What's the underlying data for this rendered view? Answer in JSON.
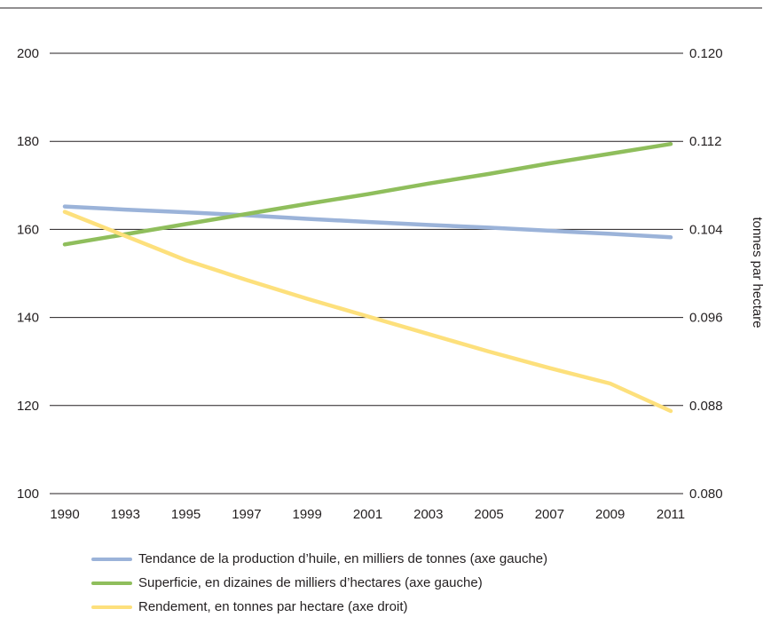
{
  "chart_data": {
    "type": "line",
    "x_labels": [
      "1990",
      "1993",
      "1995",
      "1997",
      "1999",
      "2001",
      "2003",
      "2005",
      "2007",
      "2009",
      "2011"
    ],
    "left_axis": {
      "min": 100,
      "max": 200,
      "ticks": [
        "200",
        "180",
        "160",
        "140",
        "120",
        "100"
      ]
    },
    "right_axis": {
      "min": 0.08,
      "max": 0.12,
      "label": "tonnes par hectare",
      "ticks": [
        "0.120",
        "0.112",
        "0.104",
        "0.096",
        "0.088",
        "0.080"
      ]
    },
    "grid": true,
    "legend_position": "bottom",
    "series": [
      {
        "name": "Tendance de la production d’huile, en milliers de tonnes (axe gauche)",
        "axis": "left",
        "color": "#9bb3d9",
        "values": [
          165.2,
          164.5,
          163.9,
          163.2,
          162.4,
          161.7,
          161.0,
          160.4,
          159.7,
          159.0,
          158.2
        ]
      },
      {
        "name": "Superficie, en dizaines de milliers d’hectares (axe gauche)",
        "axis": "left",
        "color": "#8fbe5c",
        "values": [
          156.6,
          158.9,
          161.2,
          163.5,
          165.8,
          168.0,
          170.4,
          172.6,
          175.0,
          177.2,
          179.4
        ]
      },
      {
        "name": "Rendement, en tonnes par hectare (axe droit)",
        "axis": "right",
        "color": "#fde07c",
        "values": [
          0.1056,
          0.1034,
          0.1012,
          0.0994,
          0.0977,
          0.0961,
          0.0945,
          0.0929,
          0.0914,
          0.09,
          0.0875
        ]
      }
    ]
  }
}
